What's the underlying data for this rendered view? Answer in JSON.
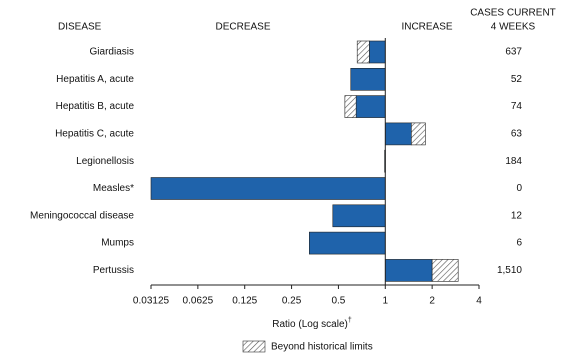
{
  "chart_data": {
    "type": "log-ratio-bar",
    "headers": {
      "disease": "DISEASE",
      "decrease": "DECREASE",
      "increase": "INCREASE",
      "cases": [
        "CASES CURRENT",
        "4 WEEKS"
      ]
    },
    "categories": [
      "Giardiasis",
      "Hepatitis A, acute",
      "Hepatitis B, acute",
      "Hepatitis C, acute",
      "Legionellosis",
      "Measles*",
      "Meningococcal disease",
      "Mumps",
      "Pertussis"
    ],
    "values": [
      0.66,
      0.6,
      0.55,
      1.81,
      0.99,
      0.03125,
      0.46,
      0.325,
      2.94
    ],
    "historical_limit": [
      0.79,
      null,
      0.65,
      1.47,
      null,
      null,
      null,
      null,
      2.0
    ],
    "cases": [
      637,
      52,
      74,
      63,
      184,
      0,
      12,
      6,
      1510
    ],
    "cases_labels": [
      "637",
      "52",
      "74",
      "63",
      "184",
      "0",
      "12",
      "6",
      "1,510"
    ],
    "color": "#1f63ab",
    "xlim": [
      0.03125,
      4
    ],
    "xticks": [
      0.03125,
      0.0625,
      0.125,
      0.25,
      0.5,
      1,
      2,
      4
    ],
    "log_scale": true,
    "x_label": "Ratio (Log scale)",
    "x_label_mark": "†",
    "legend": "Beyond historical limits"
  }
}
